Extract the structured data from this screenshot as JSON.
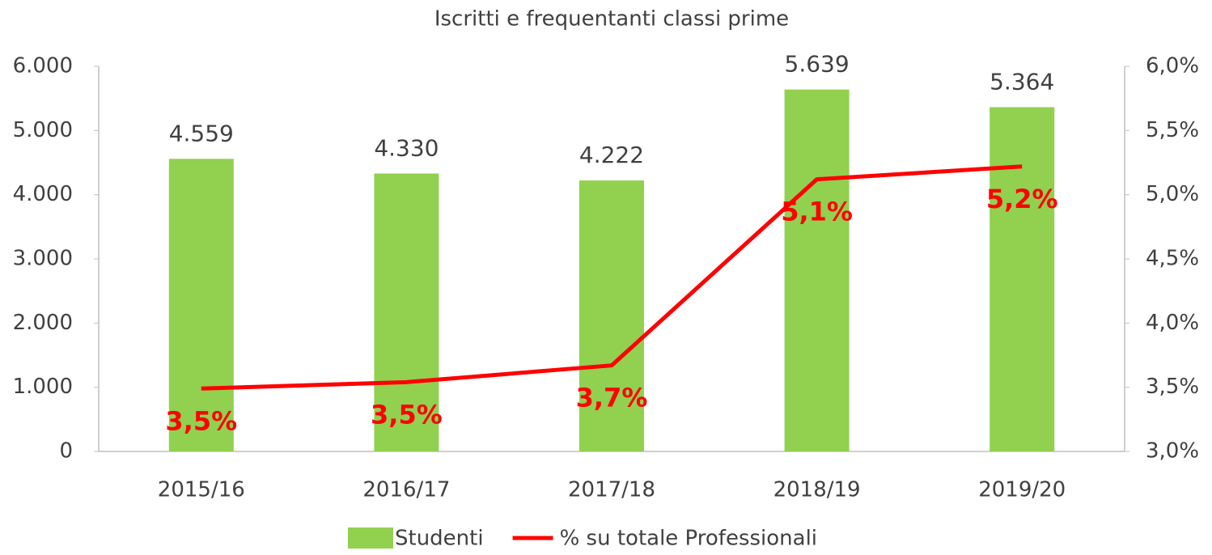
{
  "chart_data": {
    "type": "bar",
    "title": "Iscritti e frequentanti classi prime",
    "categories": [
      "2015/16",
      "2016/17",
      "2017/18",
      "2018/19",
      "2019/20"
    ],
    "series": [
      {
        "name": "Studenti",
        "type": "bar",
        "color": "#92d050",
        "values": [
          4559,
          4330,
          4222,
          5639,
          5364
        ],
        "value_labels": [
          "4.559",
          "4.330",
          "4.222",
          "5.639",
          "5.364"
        ]
      },
      {
        "name": "% su totale Professionali",
        "type": "line",
        "axis": "y2",
        "color": "#ff0000",
        "values": [
          3.49,
          3.54,
          3.67,
          5.12,
          5.22
        ],
        "value_labels": [
          "3,5%",
          "3,5%",
          "3,7%",
          "5,1%",
          "5,2%"
        ]
      }
    ],
    "ylim": [
      0,
      6000
    ],
    "yticks": [
      0,
      {
        "value": 1000,
        "label": "1.000"
      },
      {
        "value": 2000,
        "label": "2.000"
      },
      {
        "value": 3000,
        "label": "3.000"
      },
      {
        "value": 4000,
        "label": "4.000"
      },
      {
        "value": 5000,
        "label": "5.000"
      },
      {
        "value": 6000,
        "label": "6.000"
      }
    ],
    "y2lim": [
      3.0,
      6.0
    ],
    "y2ticks": [
      {
        "value": 3.0,
        "label": "3,0%"
      },
      {
        "value": 3.5,
        "label": "3,5%"
      },
      {
        "value": 4.0,
        "label": "4,0%"
      },
      {
        "value": 4.5,
        "label": "4,5%"
      },
      {
        "value": 5.0,
        "label": "5,0%"
      },
      {
        "value": 5.5,
        "label": "5,5%"
      },
      {
        "value": 6.0,
        "label": "6,0%"
      }
    ],
    "legend": "bottom",
    "grid": false
  }
}
